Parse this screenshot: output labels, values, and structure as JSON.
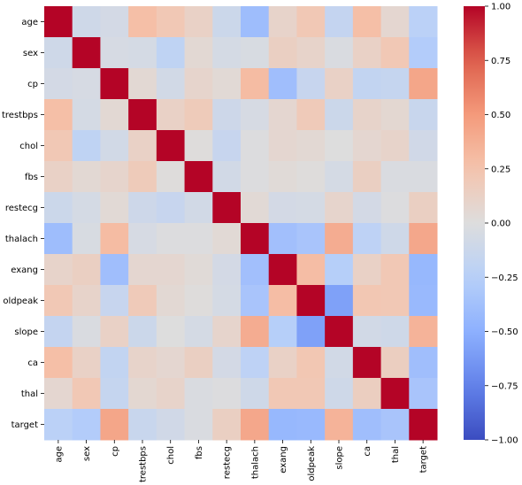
{
  "chart_data": {
    "type": "heatmap",
    "title": "",
    "xlabel": "",
    "ylabel": "",
    "colormap": "coolwarm",
    "vmin": -1.0,
    "vmax": 1.0,
    "rows": [
      "age",
      "sex",
      "cp",
      "trestbps",
      "chol",
      "fbs",
      "restecg",
      "thalach",
      "exang",
      "oldpeak",
      "slope",
      "ca",
      "thal",
      "target"
    ],
    "cols": [
      "age",
      "sex",
      "cp",
      "trestbps",
      "chol",
      "fbs",
      "restecg",
      "thalach",
      "exang",
      "oldpeak",
      "slope",
      "ca",
      "thal",
      "target"
    ],
    "matrix": [
      [
        1.0,
        -0.1,
        -0.07,
        0.28,
        0.21,
        0.12,
        -0.12,
        -0.4,
        0.1,
        0.21,
        -0.17,
        0.28,
        0.07,
        -0.23
      ],
      [
        -0.1,
        1.0,
        -0.05,
        -0.06,
        -0.2,
        0.05,
        -0.06,
        -0.04,
        0.14,
        0.1,
        -0.03,
        0.12,
        0.21,
        -0.28
      ],
      [
        -0.07,
        -0.05,
        1.0,
        0.05,
        -0.08,
        0.09,
        0.04,
        0.3,
        -0.39,
        -0.15,
        0.12,
        -0.18,
        -0.16,
        0.43
      ],
      [
        0.28,
        -0.06,
        0.05,
        1.0,
        0.12,
        0.18,
        -0.11,
        -0.05,
        0.07,
        0.19,
        -0.12,
        0.1,
        0.06,
        -0.14
      ],
      [
        0.21,
        -0.2,
        -0.08,
        0.12,
        1.0,
        0.01,
        -0.15,
        -0.01,
        0.07,
        0.05,
        0.0,
        0.07,
        0.1,
        -0.09
      ],
      [
        0.12,
        0.05,
        0.09,
        0.18,
        0.01,
        1.0,
        -0.08,
        -0.01,
        0.03,
        0.01,
        -0.06,
        0.14,
        -0.03,
        -0.03
      ],
      [
        -0.12,
        -0.06,
        0.04,
        -0.11,
        -0.15,
        -0.08,
        1.0,
        0.04,
        -0.07,
        -0.06,
        0.09,
        -0.07,
        -0.01,
        0.14
      ],
      [
        -0.4,
        -0.04,
        0.3,
        -0.05,
        -0.01,
        -0.01,
        0.04,
        1.0,
        -0.38,
        -0.34,
        0.39,
        -0.21,
        -0.1,
        0.42
      ],
      [
        0.1,
        0.14,
        -0.39,
        0.07,
        0.07,
        0.03,
        -0.07,
        -0.38,
        1.0,
        0.29,
        -0.26,
        0.12,
        0.21,
        -0.44
      ],
      [
        0.21,
        0.1,
        -0.15,
        0.19,
        0.05,
        0.01,
        -0.06,
        -0.34,
        0.29,
        1.0,
        -0.58,
        0.22,
        0.21,
        -0.43
      ],
      [
        -0.17,
        -0.03,
        0.12,
        -0.12,
        0.0,
        -0.06,
        0.09,
        0.39,
        -0.26,
        -0.58,
        1.0,
        -0.08,
        -0.1,
        0.35
      ],
      [
        0.28,
        0.12,
        -0.18,
        0.1,
        0.07,
        0.14,
        -0.07,
        -0.21,
        0.12,
        0.22,
        -0.08,
        1.0,
        0.15,
        -0.39
      ],
      [
        0.07,
        0.21,
        -0.16,
        0.06,
        0.1,
        -0.03,
        -0.01,
        -0.1,
        0.21,
        0.21,
        -0.1,
        0.15,
        1.0,
        -0.34
      ],
      [
        -0.23,
        -0.28,
        0.43,
        -0.14,
        -0.09,
        -0.03,
        0.14,
        0.42,
        -0.44,
        -0.43,
        0.35,
        -0.39,
        -0.34,
        1.0
      ]
    ],
    "colorbar_ticks": [
      1.0,
      0.75,
      0.5,
      0.25,
      0.0,
      -0.25,
      -0.5,
      -0.75,
      -1.0
    ],
    "colorbar_tick_labels": [
      "1.00",
      "0.75",
      "0.50",
      "0.25",
      "0.00",
      "−0.25",
      "−0.50",
      "−0.75",
      "−1.00"
    ],
    "grid": false,
    "legend": "colorbar-right"
  }
}
